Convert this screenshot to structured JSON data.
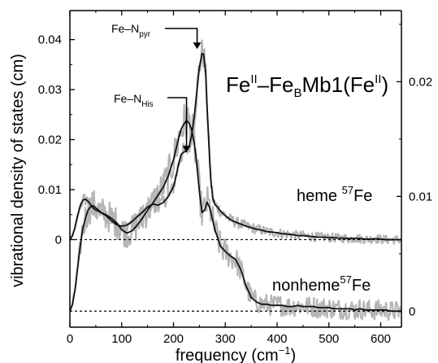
{
  "chart_data": {
    "type": "line",
    "title": "Feᴵᴵ–FeʙMb1(Feᴵᴵ)",
    "title_parts": {
      "a": "Fe",
      "a_sup": "II",
      "b": "–Fe",
      "b_sub": "B",
      "c": "Mb1(Fe",
      "c_sup": "II",
      "d": ")"
    },
    "xlabel": "frequency (cm⁻¹)",
    "xlabel_parts": {
      "main": "frequency (cm",
      "sup": "−1",
      "end": ")"
    },
    "ylabel": "vibrational density of states (cm)",
    "xlim": [
      0,
      640
    ],
    "ylim_left": [
      -0.0175,
      0.0458
    ],
    "ylim_right": [
      -0.0014,
      0.0262
    ],
    "x_ticks": [
      0,
      100,
      200,
      300,
      400,
      500,
      600
    ],
    "left_ticks": [
      0,
      0.01,
      0.02,
      0.03,
      0.04
    ],
    "left_tick_labels": [
      "0",
      "0.01",
      "0.02",
      "0.03",
      "0.04"
    ],
    "right_ticks": [
      0,
      0.01,
      0.02
    ],
    "right_tick_labels": [
      "0",
      "0.01",
      "0.02"
    ],
    "annotations": [
      {
        "text": "Fe–N",
        "sub": "pyr",
        "x": 255,
        "y": 0.0373
      },
      {
        "text": "Fe–N",
        "sub": "His",
        "x": 222,
        "y": 0.0168
      }
    ],
    "series": [
      {
        "name": "heme ⁵⁷Fe",
        "label_parts": {
          "main": "heme ",
          "sup": "57",
          "end": "Fe"
        },
        "axis": "left",
        "baseline": 0,
        "x": [
          0,
          5,
          10,
          15,
          20,
          25,
          30,
          35,
          40,
          45,
          50,
          55,
          60,
          70,
          80,
          90,
          100,
          110,
          120,
          130,
          140,
          150,
          160,
          170,
          180,
          190,
          200,
          205,
          210,
          215,
          220,
          225,
          230,
          235,
          240,
          245,
          250,
          255,
          258,
          262,
          265,
          268,
          272,
          276,
          280,
          285,
          290,
          295,
          300,
          310,
          320,
          330,
          340,
          350,
          360,
          370,
          380,
          390,
          400,
          410,
          420,
          430,
          440,
          450,
          460,
          470,
          480,
          490,
          500,
          510,
          520,
          530,
          540,
          550,
          560,
          570,
          580,
          590,
          600,
          610,
          620,
          630,
          640
        ],
        "y": [
          0,
          0.0008,
          0.0025,
          0.0048,
          0.0068,
          0.0079,
          0.0081,
          0.0077,
          0.007,
          0.0063,
          0.0059,
          0.0057,
          0.0054,
          0.0048,
          0.0038,
          0.003,
          0.0027,
          0.0029,
          0.0036,
          0.0046,
          0.0055,
          0.0065,
          0.0071,
          0.0069,
          0.0074,
          0.0086,
          0.0106,
          0.0127,
          0.0152,
          0.0171,
          0.0175,
          0.0177,
          0.0186,
          0.0208,
          0.0245,
          0.0296,
          0.0345,
          0.0372,
          0.0371,
          0.0335,
          0.0265,
          0.0195,
          0.012,
          0.0082,
          0.007,
          0.0065,
          0.0058,
          0.0053,
          0.0048,
          0.004,
          0.0035,
          0.0031,
          0.0027,
          0.0024,
          0.0021,
          0.0019,
          0.0016,
          0.0015,
          0.0014,
          0.0012,
          0.0011,
          0.001,
          0.0008,
          0.0008,
          0.0007,
          0.0006,
          0.0005,
          0.0005,
          0.0004,
          0.0004,
          0.0003,
          0.0003,
          0.0002,
          0.0003,
          0.0002,
          0.0001,
          0.0001,
          0.0002,
          0.0001,
          0.0,
          0.0,
          0.0,
          0.0
        ]
      },
      {
        "name": "nonheme ⁵⁷Fe",
        "label_parts": {
          "main": "nonheme",
          "sup": "57",
          "end": "Fe"
        },
        "axis": "right",
        "baseline": 0,
        "x": [
          0,
          5,
          10,
          15,
          20,
          25,
          30,
          35,
          40,
          45,
          50,
          55,
          60,
          70,
          80,
          90,
          100,
          110,
          120,
          130,
          140,
          150,
          160,
          170,
          180,
          190,
          200,
          210,
          215,
          220,
          225,
          230,
          235,
          240,
          245,
          250,
          255,
          260,
          265,
          270,
          280,
          290,
          300,
          310,
          320,
          330,
          340,
          350,
          360,
          370,
          380,
          390,
          400,
          410,
          420,
          430,
          440,
          450,
          460,
          470,
          480,
          490,
          500,
          510,
          520,
          530,
          540,
          550,
          560,
          570,
          580,
          590,
          600,
          610,
          620,
          630,
          640
        ],
        "y": [
          0,
          0.0006,
          0.0019,
          0.0038,
          0.0057,
          0.0072,
          0.0081,
          0.0088,
          0.0091,
          0.0092,
          0.009,
          0.0088,
          0.0086,
          0.0084,
          0.0081,
          0.0077,
          0.0071,
          0.0068,
          0.007,
          0.0075,
          0.0081,
          0.0088,
          0.0094,
          0.0101,
          0.0108,
          0.0118,
          0.0132,
          0.0151,
          0.0159,
          0.0163,
          0.0166,
          0.0164,
          0.0158,
          0.0147,
          0.0128,
          0.0104,
          0.0086,
          0.0088,
          0.0095,
          0.009,
          0.0071,
          0.0057,
          0.0052,
          0.0048,
          0.0045,
          0.0036,
          0.0022,
          0.0012,
          0.0008,
          0.0006,
          0.0006,
          0.0005,
          0.0005,
          0.0005,
          0.0004,
          0.0004,
          0.0005,
          0.0004,
          0.0004,
          0.0004,
          0.0003,
          0.0003,
          0.0003,
          0.0002,
          0.0002,
          0.0002,
          0.0002,
          0.0001,
          0.0002,
          0.0001,
          0.0001,
          0.0001,
          0.0001,
          0.0001,
          0.0,
          0.0,
          0.0
        ]
      }
    ],
    "colors": {
      "fit": "#111111",
      "raw": "#b5b5b5",
      "axis": "#000000"
    },
    "grid": false,
    "legend": "none"
  }
}
